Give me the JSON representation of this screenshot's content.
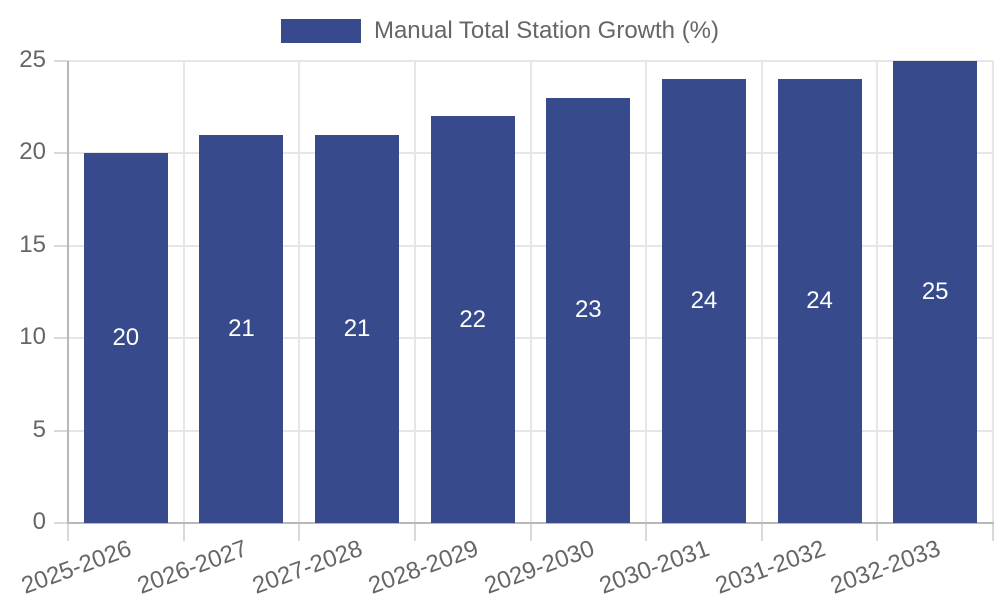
{
  "chart_data": {
    "type": "bar",
    "title": "Manual Total Station Growth (%)",
    "categories": [
      "2025-2026",
      "2026-2027",
      "2027-2028",
      "2028-2029",
      "2029-2030",
      "2030-2031",
      "2031-2032",
      "2032-2033"
    ],
    "values": [
      20,
      21,
      21,
      22,
      23,
      24,
      24,
      25
    ],
    "bar_value_labels": [
      "20",
      "21",
      "21",
      "22",
      "23",
      "24",
      "24",
      "25"
    ],
    "xlabel": "",
    "ylabel": "",
    "ylim": [
      0,
      25
    ],
    "yticks": [
      0,
      5,
      10,
      15,
      20,
      25
    ],
    "grid": true,
    "legend_position": "top",
    "colors": {
      "bar": "#364A8C",
      "grid": "#E6E6E6",
      "axis": "#B8B8B8",
      "tick": "#D9D9D9",
      "text": "#666666",
      "bar_label": "#FFFFFF",
      "background": "#FFFFFF"
    }
  }
}
